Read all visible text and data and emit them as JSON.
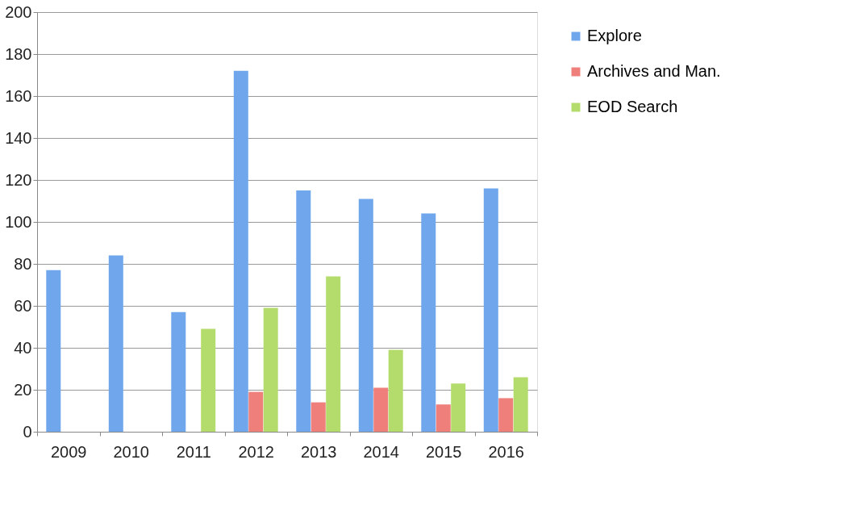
{
  "chart_data": {
    "type": "bar",
    "categories": [
      "2009",
      "2010",
      "2011",
      "2012",
      "2013",
      "2014",
      "2015",
      "2016"
    ],
    "series": [
      {
        "name": "Explore",
        "color": "#6fa6ec",
        "values": [
          77,
          84,
          57,
          172,
          115,
          111,
          104,
          116
        ]
      },
      {
        "name": "Archives and Man.",
        "color": "#ee7f7a",
        "values": [
          null,
          null,
          null,
          19,
          14,
          21,
          13,
          16
        ]
      },
      {
        "name": "EOD Search",
        "color": "#b4dc6c",
        "values": [
          null,
          null,
          49,
          59,
          74,
          39,
          23,
          26
        ]
      }
    ],
    "ylim": [
      0,
      200
    ],
    "yticks": [
      0,
      20,
      40,
      60,
      80,
      100,
      120,
      140,
      160,
      180,
      200
    ],
    "grid": "y",
    "legend": "right"
  }
}
